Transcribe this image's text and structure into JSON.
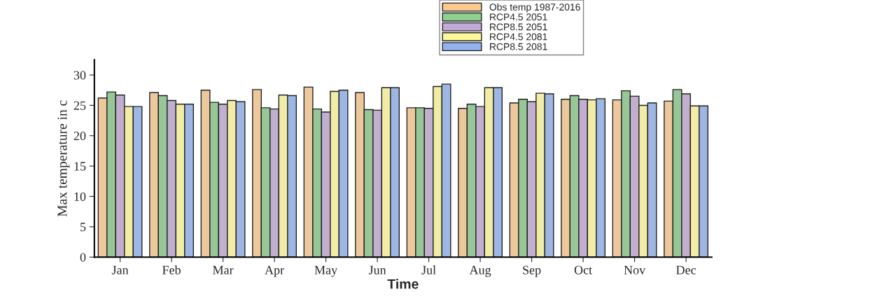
{
  "chart_data": {
    "type": "bar",
    "xlabel": "Time",
    "ylabel": "Max temperature in c",
    "categories": [
      "Jan",
      "Feb",
      "Mar",
      "Apr",
      "May",
      "Jun",
      "Jul",
      "Aug",
      "Sep",
      "Oct",
      "Nov",
      "Dec"
    ],
    "series": [
      {
        "name": "Obs temp 1987-2016",
        "color": "#fbc98e",
        "values": [
          26.2,
          27.1,
          27.5,
          27.6,
          28.0,
          27.1,
          24.6,
          24.5,
          25.4,
          26.0,
          25.9,
          25.7
        ]
      },
      {
        "name": "RCP4.5 2051",
        "color": "#8fcf8f",
        "values": [
          27.2,
          26.6,
          25.5,
          24.6,
          24.4,
          24.3,
          24.6,
          25.2,
          26.0,
          26.6,
          27.4,
          27.6
        ]
      },
      {
        "name": "RCP8.5 2051",
        "color": "#c3a9d6",
        "values": [
          26.7,
          25.8,
          25.2,
          24.4,
          23.9,
          24.2,
          24.5,
          24.8,
          25.6,
          26.0,
          26.5,
          26.9
        ]
      },
      {
        "name": "RCP4.5 2081",
        "color": "#fdf89a",
        "values": [
          24.8,
          25.2,
          25.8,
          26.7,
          27.3,
          27.9,
          28.1,
          27.9,
          27.0,
          25.9,
          25.0,
          24.9
        ]
      },
      {
        "name": "RCP8.5 2081",
        "color": "#92b3ef",
        "values": [
          24.8,
          25.2,
          25.6,
          26.6,
          27.5,
          27.9,
          28.5,
          27.9,
          26.9,
          26.1,
          25.4,
          24.9
        ]
      }
    ],
    "ylim": [
      0,
      32.5
    ],
    "yticks": [
      0,
      5,
      10,
      15,
      20,
      25,
      30
    ],
    "grid": false,
    "legend": "top"
  }
}
